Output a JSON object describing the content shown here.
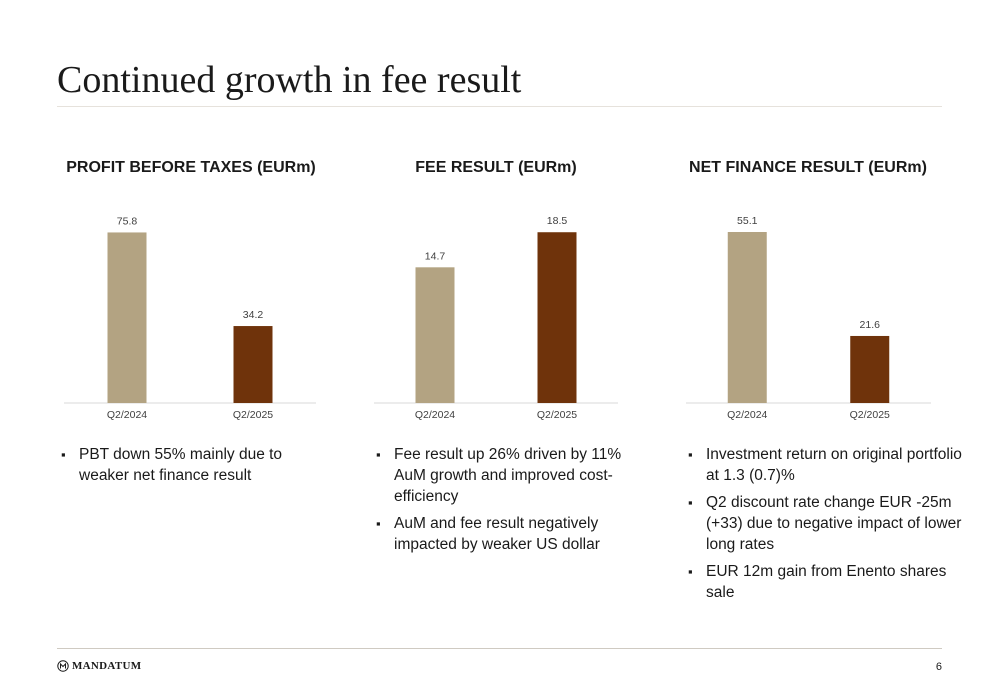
{
  "slide": {
    "title": "Continued growth in fee result",
    "page_number": "6",
    "logo_text": "MANDATUM"
  },
  "colors": {
    "sand": "#b3a382",
    "brown": "#6f330b",
    "axis": "#d9d9d9"
  },
  "chart_data": [
    {
      "type": "bar",
      "title": "PROFIT BEFORE TAXES (EURm)",
      "categories": [
        "Q2/2024",
        "Q2/2025"
      ],
      "values": [
        75.8,
        34.2
      ],
      "ylim": [
        0,
        80
      ]
    },
    {
      "type": "bar",
      "title": "FEE RESULT (EURm)",
      "categories": [
        "Q2/2024",
        "Q2/2025"
      ],
      "values": [
        14.7,
        18.5
      ],
      "ylim": [
        0,
        19.5
      ]
    },
    {
      "type": "bar",
      "title": "NET FINANCE RESULT (EURm)",
      "categories": [
        "Q2/2024",
        "Q2/2025"
      ],
      "values": [
        55.1,
        21.6
      ],
      "ylim": [
        0,
        58
      ]
    }
  ],
  "bullets": [
    [
      "PBT down 55% mainly due to weaker net finance result"
    ],
    [
      "Fee result up 26% driven by 11% AuM growth and improved cost-efficiency",
      "AuM and fee result negatively impacted by weaker US dollar"
    ],
    [
      "Investment return on original portfolio at 1.3 (0.7)%",
      "Q2 discount rate change EUR -25m (+33) due to negative impact of lower long rates",
      "EUR 12m gain from Enento shares sale"
    ]
  ]
}
